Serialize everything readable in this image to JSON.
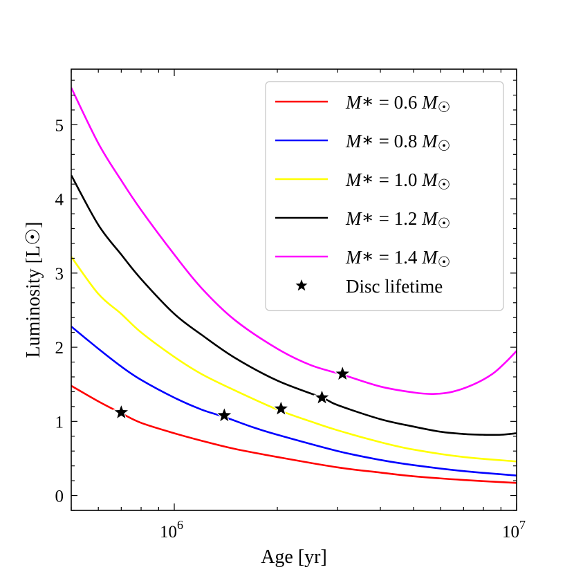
{
  "chart_data": {
    "type": "line",
    "xscale": "log",
    "xlabel": "Age [yr]",
    "ylabel": "Luminosity [L☉]",
    "xlim": [
      500000,
      10000000
    ],
    "ylim": [
      -0.2,
      5.75
    ],
    "x_ticks": [
      {
        "value": 1000000,
        "base": "10",
        "exp": "6"
      },
      {
        "value": 10000000,
        "base": "10",
        "exp": "7"
      }
    ],
    "y_ticks": [
      {
        "value": 0,
        "label": "0"
      },
      {
        "value": 1,
        "label": "1"
      },
      {
        "value": 2,
        "label": "2"
      },
      {
        "value": 3,
        "label": "3"
      },
      {
        "value": 4,
        "label": "4"
      },
      {
        "value": 5,
        "label": "5"
      }
    ],
    "series": [
      {
        "name": "M* = 0.6 M☉",
        "mass": "0.6",
        "color": "#ff0000",
        "points": [
          [
            500000,
            1.48
          ],
          [
            600000,
            1.27
          ],
          [
            700000,
            1.11
          ],
          [
            800000,
            0.98
          ],
          [
            1000000,
            0.84
          ],
          [
            1200000,
            0.74
          ],
          [
            1500000,
            0.63
          ],
          [
            2000000,
            0.52
          ],
          [
            3000000,
            0.38
          ],
          [
            4000000,
            0.31
          ],
          [
            5000000,
            0.26
          ],
          [
            7000000,
            0.21
          ],
          [
            10000000,
            0.17
          ]
        ]
      },
      {
        "name": "M* = 0.8 M☉",
        "mass": "0.8",
        "color": "#0000ff",
        "points": [
          [
            500000,
            2.28
          ],
          [
            600000,
            1.98
          ],
          [
            700000,
            1.74
          ],
          [
            800000,
            1.56
          ],
          [
            1000000,
            1.32
          ],
          [
            1200000,
            1.16
          ],
          [
            1400000,
            1.06
          ],
          [
            1700000,
            0.92
          ],
          [
            2000000,
            0.82
          ],
          [
            3000000,
            0.6
          ],
          [
            4000000,
            0.48
          ],
          [
            5000000,
            0.41
          ],
          [
            7000000,
            0.33
          ],
          [
            10000000,
            0.27
          ]
        ]
      },
      {
        "name": "M* = 1.0 M☉",
        "mass": "1.0",
        "color": "#ffff00",
        "points": [
          [
            500000,
            3.22
          ],
          [
            600000,
            2.72
          ],
          [
            700000,
            2.45
          ],
          [
            800000,
            2.2
          ],
          [
            1000000,
            1.87
          ],
          [
            1200000,
            1.64
          ],
          [
            1500000,
            1.42
          ],
          [
            2000000,
            1.16
          ],
          [
            2500000,
            1.0
          ],
          [
            3000000,
            0.88
          ],
          [
            4000000,
            0.72
          ],
          [
            5000000,
            0.62
          ],
          [
            7000000,
            0.52
          ],
          [
            10000000,
            0.46
          ]
        ]
      },
      {
        "name": "M* = 1.2 M☉",
        "mass": "1.2",
        "color": "#000000",
        "points": [
          [
            500000,
            4.32
          ],
          [
            600000,
            3.65
          ],
          [
            700000,
            3.25
          ],
          [
            800000,
            2.92
          ],
          [
            1000000,
            2.45
          ],
          [
            1200000,
            2.17
          ],
          [
            1500000,
            1.86
          ],
          [
            2000000,
            1.55
          ],
          [
            2700000,
            1.32
          ],
          [
            3000000,
            1.22
          ],
          [
            4000000,
            1.03
          ],
          [
            5000000,
            0.93
          ],
          [
            6000000,
            0.86
          ],
          [
            7000000,
            0.83
          ],
          [
            8000000,
            0.82
          ],
          [
            9000000,
            0.82
          ],
          [
            10000000,
            0.84
          ]
        ]
      },
      {
        "name": "M* = 1.4 M☉",
        "mass": "1.4",
        "color": "#ff00ff",
        "points": [
          [
            500000,
            5.5
          ],
          [
            600000,
            4.75
          ],
          [
            700000,
            4.25
          ],
          [
            800000,
            3.85
          ],
          [
            1000000,
            3.25
          ],
          [
            1200000,
            2.8
          ],
          [
            1500000,
            2.37
          ],
          [
            2000000,
            1.98
          ],
          [
            2500000,
            1.76
          ],
          [
            3100000,
            1.63
          ],
          [
            4000000,
            1.47
          ],
          [
            5000000,
            1.39
          ],
          [
            5700000,
            1.37
          ],
          [
            6500000,
            1.4
          ],
          [
            7500000,
            1.5
          ],
          [
            8500000,
            1.64
          ],
          [
            9300000,
            1.8
          ],
          [
            10000000,
            1.95
          ]
        ]
      }
    ],
    "disc_lifetime": {
      "label": "Disc lifetime",
      "points": [
        [
          700000,
          1.12
        ],
        [
          1400000,
          1.08
        ],
        [
          2050000,
          1.17
        ],
        [
          2700000,
          1.32
        ],
        [
          3100000,
          1.64
        ]
      ]
    },
    "legend": {
      "position": "top-right"
    }
  }
}
